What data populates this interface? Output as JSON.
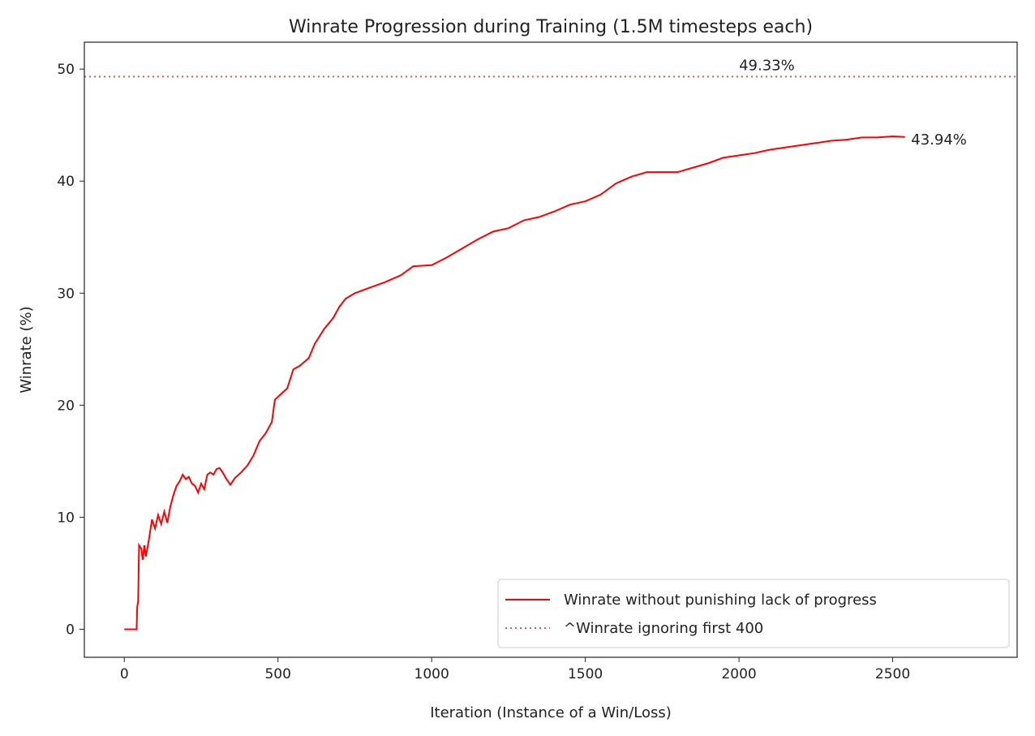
{
  "chart_data": {
    "type": "line",
    "title": "Winrate Progression during Training (1.5M timesteps each)",
    "x_label": "Iteration (Instance of a Win/Loss)",
    "y_label": "Winrate (%)",
    "xlim": [
      -130,
      2905
    ],
    "ylim": [
      -2.5,
      52.4
    ],
    "xticks": [
      0,
      500,
      1000,
      1500,
      2000,
      2500
    ],
    "yticks": [
      0,
      10,
      20,
      30,
      40,
      50
    ],
    "legend": "lower right",
    "x": [
      0,
      40,
      42,
      45,
      48,
      55,
      60,
      65,
      70,
      80,
      90,
      100,
      110,
      120,
      130,
      140,
      150,
      160,
      170,
      180,
      190,
      200,
      210,
      220,
      230,
      240,
      250,
      260,
      270,
      280,
      290,
      300,
      310,
      320,
      330,
      345,
      360,
      380,
      400,
      420,
      440,
      460,
      480,
      490,
      510,
      530,
      550,
      570,
      600,
      620,
      650,
      680,
      700,
      720,
      750,
      800,
      850,
      900,
      940,
      1000,
      1050,
      1100,
      1150,
      1200,
      1250,
      1300,
      1350,
      1400,
      1450,
      1500,
      1550,
      1600,
      1650,
      1700,
      1750,
      1800,
      1850,
      1900,
      1950,
      2000,
      2050,
      2100,
      2150,
      2200,
      2250,
      2300,
      2350,
      2400,
      2450,
      2500,
      2540
    ],
    "series": [
      {
        "name": "Winrate without punishing lack of progress",
        "color": "#ff0000",
        "style": "solid",
        "values": [
          0,
          0,
          2,
          2.5,
          7.5,
          7.2,
          6.2,
          7.5,
          6.5,
          8,
          9.8,
          9,
          10.2,
          9.4,
          10.5,
          9.5,
          11,
          12,
          12.8,
          13.2,
          13.8,
          13.4,
          13.6,
          13,
          12.8,
          12.2,
          13,
          12.5,
          13.8,
          14,
          13.8,
          14.3,
          14.4,
          14,
          13.5,
          12.9,
          13.5,
          14,
          14.6,
          15.5,
          16.8,
          17.5,
          18.5,
          20.5,
          21,
          21.5,
          23.2,
          23.5,
          24.2,
          25.5,
          26.8,
          27.8,
          28.8,
          29.5,
          30,
          30.5,
          31,
          31.6,
          32.4,
          32.5,
          33.2,
          34,
          34.8,
          35.5,
          35.8,
          36.5,
          36.8,
          37.3,
          37.9,
          38.2,
          38.8,
          39.8,
          40.4,
          40.8,
          40.8,
          40.8,
          41.2,
          41.6,
          42.1,
          42.3,
          42.5,
          42.8,
          43,
          43.2,
          43.4,
          43.6,
          43.7,
          43.9,
          43.9,
          44,
          43.94
        ]
      }
    ],
    "hline": {
      "name": "^Winrate ignoring first 400",
      "value": 49.33,
      "color": "#e05a5a",
      "style": "dotted"
    },
    "annotations": [
      {
        "text": "49.33%",
        "x": 2000,
        "y": 49.33,
        "color": "#ff0000"
      },
      {
        "text": "43.94%",
        "x": 2560,
        "y": 43.94,
        "color": "#ff0000"
      }
    ]
  }
}
